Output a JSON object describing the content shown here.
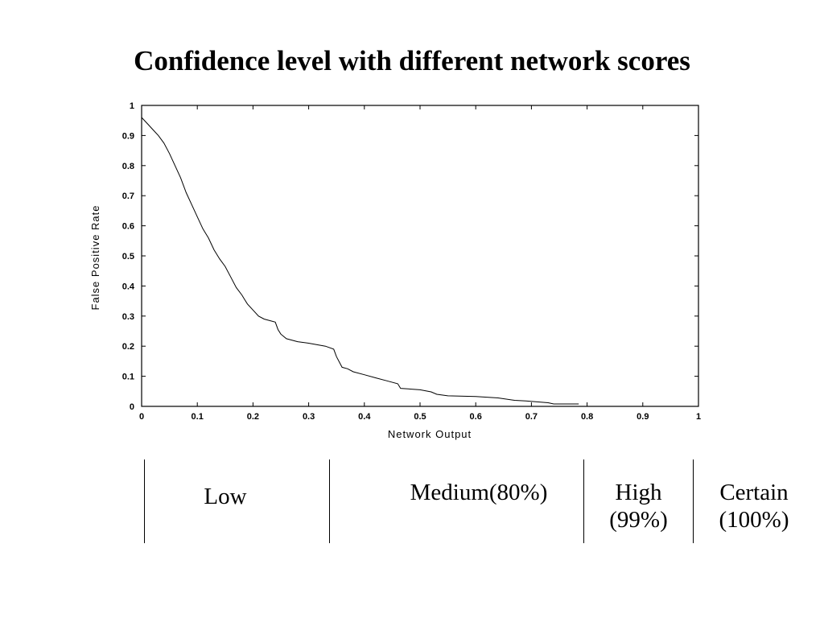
{
  "title": "Confidence level with different network scores",
  "chart_data": {
    "type": "line",
    "title": "Confidence level with different network scores",
    "xlabel": "Network Output",
    "ylabel": "False Positive Rate",
    "xlim": [
      0,
      1
    ],
    "ylim": [
      0,
      1
    ],
    "x_ticks": [
      "0",
      "0.1",
      "0.2",
      "0.3",
      "0.4",
      "0.5",
      "0.6",
      "0.7",
      "0.8",
      "0.9",
      "1"
    ],
    "y_ticks": [
      "0",
      "0.1",
      "0.2",
      "0.3",
      "0.4",
      "0.5",
      "0.6",
      "0.7",
      "0.8",
      "0.9",
      "1"
    ],
    "grid": false,
    "series": [
      {
        "x": [
          0,
          0.01,
          0.02,
          0.03,
          0.04,
          0.05,
          0.06,
          0.07,
          0.08,
          0.09,
          0.1,
          0.11,
          0.12,
          0.13,
          0.14,
          0.15,
          0.16,
          0.17,
          0.18,
          0.185,
          0.19,
          0.2,
          0.21,
          0.22,
          0.24,
          0.245,
          0.25,
          0.26,
          0.28,
          0.3,
          0.33,
          0.345,
          0.35,
          0.36,
          0.37,
          0.38,
          0.4,
          0.42,
          0.44,
          0.46,
          0.465,
          0.5,
          0.52,
          0.53,
          0.55,
          0.6,
          0.64,
          0.67,
          0.69,
          0.73,
          0.74,
          0.785
        ],
        "y": [
          0.96,
          0.94,
          0.92,
          0.9,
          0.875,
          0.84,
          0.8,
          0.76,
          0.71,
          0.67,
          0.63,
          0.59,
          0.56,
          0.52,
          0.49,
          0.465,
          0.43,
          0.395,
          0.37,
          0.355,
          0.34,
          0.32,
          0.3,
          0.29,
          0.28,
          0.255,
          0.24,
          0.225,
          0.215,
          0.21,
          0.2,
          0.19,
          0.165,
          0.13,
          0.125,
          0.115,
          0.105,
          0.095,
          0.085,
          0.075,
          0.06,
          0.055,
          0.048,
          0.04,
          0.035,
          0.033,
          0.028,
          0.02,
          0.018,
          0.012,
          0.008,
          0.008
        ]
      }
    ]
  },
  "bands": [
    {
      "lines": [
        "Low"
      ]
    },
    {
      "lines": [
        "Medium(80%)"
      ]
    },
    {
      "lines": [
        "High",
        "(99%)"
      ]
    },
    {
      "lines": [
        "Certain",
        "(100%)"
      ]
    }
  ]
}
